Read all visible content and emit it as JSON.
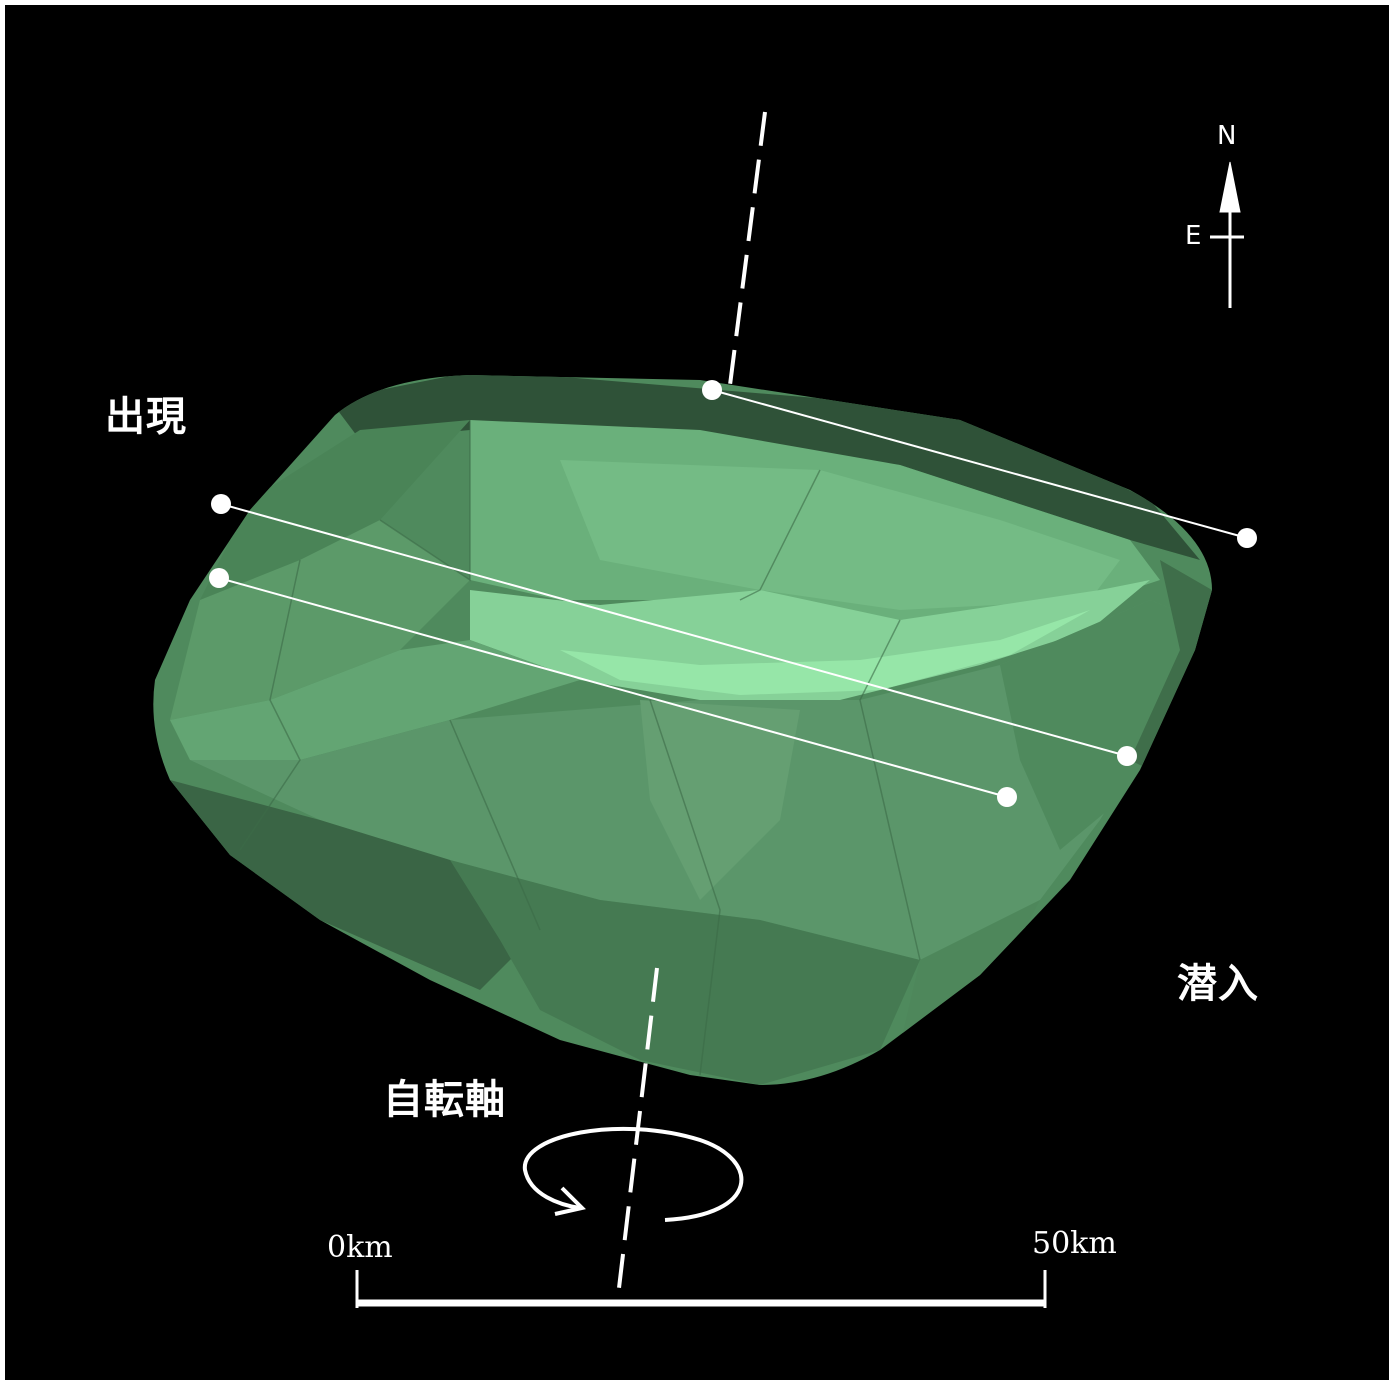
{
  "labels": {
    "appearance": "出現",
    "disappearance": "潜入",
    "rotation_axis": "自転軸"
  },
  "compass": {
    "north": "N",
    "east": "E"
  },
  "scale_bar": {
    "start_label": "0km",
    "end_label": "50km"
  },
  "colors": {
    "background": "#000000",
    "body_base": "#5a9568",
    "body_highlight": "#96e6a8",
    "chord_line": "#ffffff",
    "text": "#ffffff"
  }
}
